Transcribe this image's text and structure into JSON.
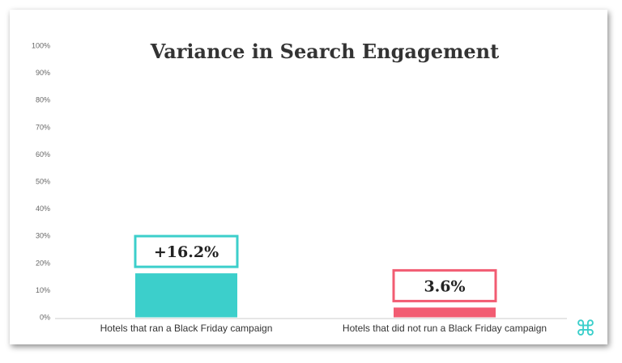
{
  "chart_data": {
    "type": "bar",
    "title": "Variance in Search Engagement",
    "xlabel": "",
    "ylabel": "",
    "ylim": [
      0,
      100
    ],
    "y_ticks": [
      "0%",
      "10%",
      "20%",
      "30%",
      "40%",
      "50%",
      "60%",
      "70%",
      "80%",
      "90%",
      "100%"
    ],
    "categories": [
      "Hotels that ran a Black Friday campaign",
      "Hotels that did not run a Black Friday campaign"
    ],
    "values": [
      16.2,
      3.6
    ],
    "data_labels": [
      "+16.2%",
      "3.6%"
    ],
    "colors": [
      "#3ccfcb",
      "#f25c72"
    ],
    "grid": false,
    "legend": "none"
  },
  "logo": {
    "glyph": "⌘",
    "color": "#3ccfcb"
  }
}
